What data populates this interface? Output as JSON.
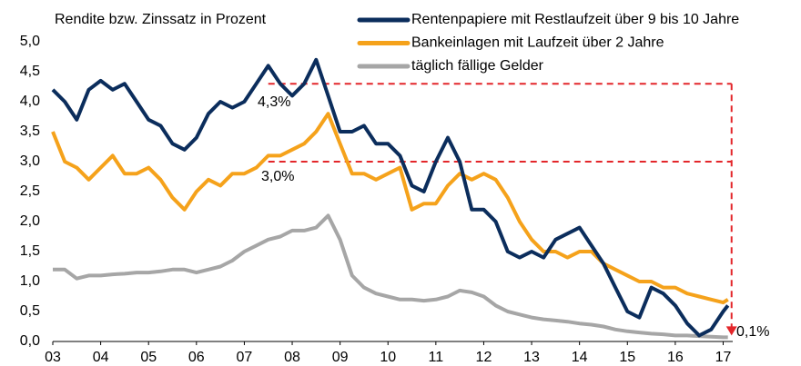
{
  "chart_data": {
    "type": "line",
    "title": "Rendite bzw. Zinssatz in Prozent",
    "x": [
      2003,
      2003.25,
      2003.5,
      2003.75,
      2004,
      2004.25,
      2004.5,
      2004.75,
      2005,
      2005.25,
      2005.5,
      2005.75,
      2006,
      2006.25,
      2006.5,
      2006.75,
      2007,
      2007.25,
      2007.5,
      2007.75,
      2008,
      2008.25,
      2008.5,
      2008.75,
      2009,
      2009.25,
      2009.5,
      2009.75,
      2010,
      2010.25,
      2010.5,
      2010.75,
      2011,
      2011.25,
      2011.5,
      2011.75,
      2012,
      2012.25,
      2012.5,
      2012.75,
      2013,
      2013.25,
      2013.5,
      2013.75,
      2014,
      2014.25,
      2014.5,
      2014.75,
      2015,
      2015.25,
      2015.5,
      2015.75,
      2016,
      2016.25,
      2016.5,
      2016.75,
      2017,
      2017.1
    ],
    "series": [
      {
        "name": "Rentenpapiere mit Restlaufzeit über 9 bis 10 Jahre",
        "color": "#0b2d5c",
        "values": [
          4.2,
          4.0,
          3.7,
          4.2,
          4.35,
          4.2,
          4.3,
          4.0,
          3.7,
          3.6,
          3.3,
          3.2,
          3.4,
          3.8,
          4.0,
          3.9,
          4.0,
          4.3,
          4.6,
          4.3,
          4.1,
          4.3,
          4.7,
          4.1,
          3.5,
          3.5,
          3.6,
          3.3,
          3.3,
          3.1,
          2.6,
          2.5,
          3.0,
          3.4,
          3.0,
          2.2,
          2.2,
          2.0,
          1.5,
          1.4,
          1.5,
          1.4,
          1.7,
          1.8,
          1.9,
          1.6,
          1.3,
          0.9,
          0.5,
          0.4,
          0.9,
          0.8,
          0.6,
          0.3,
          0.1,
          0.2,
          0.5,
          0.6
        ]
      },
      {
        "name": "Bankeinlagen mit Laufzeit über 2 Jahre",
        "color": "#f5a21b",
        "values": [
          3.5,
          3.0,
          2.9,
          2.7,
          2.9,
          3.1,
          2.8,
          2.8,
          2.9,
          2.7,
          2.4,
          2.2,
          2.5,
          2.7,
          2.6,
          2.8,
          2.8,
          2.9,
          3.1,
          3.1,
          3.2,
          3.3,
          3.5,
          3.8,
          3.3,
          2.8,
          2.8,
          2.7,
          2.8,
          2.9,
          2.2,
          2.3,
          2.3,
          2.6,
          2.8,
          2.7,
          2.8,
          2.7,
          2.4,
          2.0,
          1.7,
          1.5,
          1.5,
          1.4,
          1.5,
          1.5,
          1.3,
          1.2,
          1.1,
          1.0,
          1.0,
          0.9,
          0.9,
          0.8,
          0.75,
          0.7,
          0.65,
          0.7
        ]
      },
      {
        "name": "täglich fällige Gelder",
        "color": "#a6a6a6",
        "values": [
          1.2,
          1.2,
          1.05,
          1.1,
          1.1,
          1.12,
          1.13,
          1.15,
          1.15,
          1.17,
          1.2,
          1.2,
          1.15,
          1.2,
          1.25,
          1.35,
          1.5,
          1.6,
          1.7,
          1.75,
          1.85,
          1.85,
          1.9,
          2.1,
          1.7,
          1.1,
          0.9,
          0.8,
          0.75,
          0.7,
          0.7,
          0.68,
          0.7,
          0.75,
          0.85,
          0.82,
          0.75,
          0.6,
          0.5,
          0.45,
          0.4,
          0.37,
          0.35,
          0.33,
          0.3,
          0.28,
          0.25,
          0.2,
          0.17,
          0.15,
          0.13,
          0.12,
          0.1,
          0.1,
          0.09,
          0.08,
          0.07,
          0.07
        ]
      }
    ],
    "xlim": [
      2003,
      2017.2
    ],
    "xticks": [
      {
        "value": 2003,
        "label": "03"
      },
      {
        "value": 2004,
        "label": "04"
      },
      {
        "value": 2005,
        "label": "05"
      },
      {
        "value": 2006,
        "label": "06"
      },
      {
        "value": 2007,
        "label": "07"
      },
      {
        "value": 2008,
        "label": "08"
      },
      {
        "value": 2009,
        "label": "09"
      },
      {
        "value": 2010,
        "label": "10"
      },
      {
        "value": 2011,
        "label": "11"
      },
      {
        "value": 2012,
        "label": "12"
      },
      {
        "value": 2013,
        "label": "13"
      },
      {
        "value": 2014,
        "label": "14"
      },
      {
        "value": 2015,
        "label": "15"
      },
      {
        "value": 2016,
        "label": "16"
      },
      {
        "value": 2017,
        "label": "17"
      }
    ],
    "ylim": [
      0,
      5
    ],
    "yticks": [
      {
        "value": 0,
        "label": "0,0"
      },
      {
        "value": 0.5,
        "label": "0,5"
      },
      {
        "value": 1,
        "label": "1,0"
      },
      {
        "value": 1.5,
        "label": "1,5"
      },
      {
        "value": 2,
        "label": "2,0"
      },
      {
        "value": 2.5,
        "label": "2,5"
      },
      {
        "value": 3,
        "label": "3,0"
      },
      {
        "value": 3.5,
        "label": "3,5"
      },
      {
        "value": 4,
        "label": "4,0"
      },
      {
        "value": 4.5,
        "label": "4,5"
      },
      {
        "value": 5,
        "label": "5,0"
      }
    ],
    "grid": false,
    "annotations": [
      {
        "text": "4,3%",
        "value": 4.3,
        "color": "#2e4a78"
      },
      {
        "text": "3,0%",
        "value": 3.0,
        "color": "#f5a21b"
      },
      {
        "text": "0,1%",
        "value": 0.1,
        "color": "#a6a6a6"
      }
    ],
    "annotation_line_color": "#e3262a"
  }
}
